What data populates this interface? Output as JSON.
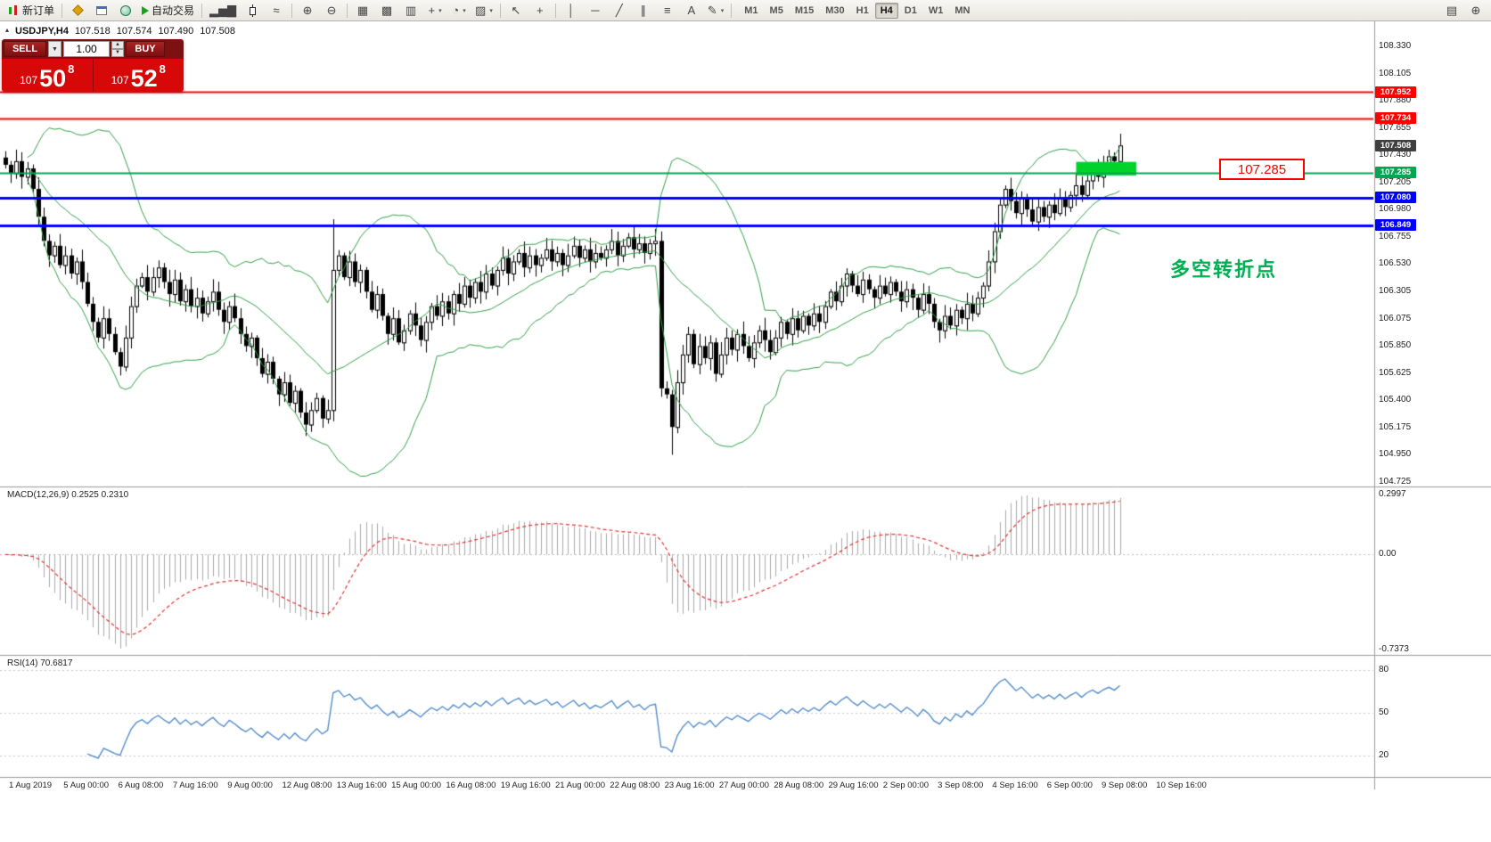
{
  "colors": {
    "accent_red": "#ff0000",
    "accent_green": "#00a651",
    "accent_blue": "#0000ff",
    "current_tag": "#3f3f3f",
    "bollinger": "#2f9e45",
    "candle_up": "#ffffff",
    "candle_down": "#000000",
    "macd_hist": "#a8a8a8",
    "macd_signal": "#e03333",
    "rsi_line": "#4a86c8",
    "panel_red": "#d60808",
    "highlight_green": "#00d22c"
  },
  "toolbar": {
    "items": [
      {
        "name": "new-order-button",
        "icon": "i-candles",
        "label": "新订单"
      },
      {
        "name": "separator"
      },
      {
        "name": "market-watch-icon",
        "icon": "i-diamond"
      },
      {
        "name": "data-window-icon",
        "icon": "i-window"
      },
      {
        "name": "navigator-icon",
        "icon": "i-globe"
      },
      {
        "name": "autotrading-button",
        "icon": "i-play",
        "label": "自动交易"
      },
      {
        "name": "separator"
      },
      {
        "name": "bar-chart-icon",
        "glyph": "▂▅▇"
      },
      {
        "name": "candlestick-chart-icon",
        "icon": "i-candle"
      },
      {
        "name": "line-chart-icon",
        "glyph": "≈"
      },
      {
        "name": "separator"
      },
      {
        "name": "zoom-in-icon",
        "glyph": "⊕"
      },
      {
        "name": "zoom-out-icon",
        "glyph": "⊖"
      },
      {
        "name": "separator"
      },
      {
        "name": "tile-windows-icon",
        "glyph": "▦"
      },
      {
        "name": "cascade-windows-icon",
        "glyph": "▩"
      },
      {
        "name": "arrange-icon",
        "glyph": "▥"
      },
      {
        "name": "indicators-button",
        "glyph": "+",
        "caret": true
      },
      {
        "name": "periods-button",
        "glyph": "◔",
        "caret": true
      },
      {
        "name": "templates-button",
        "glyph": "▨",
        "caret": true
      },
      {
        "name": "separator"
      },
      {
        "name": "cursor-icon",
        "glyph": "↖"
      },
      {
        "name": "crosshair-icon",
        "glyph": "+"
      },
      {
        "name": "separator"
      },
      {
        "name": "vertical-line-icon",
        "glyph": "│"
      },
      {
        "name": "horizontal-line-icon",
        "glyph": "─"
      },
      {
        "name": "trendline-icon",
        "glyph": "╱"
      },
      {
        "name": "channel-icon",
        "glyph": "∥"
      },
      {
        "name": "fibonacci-icon",
        "glyph": "≡"
      },
      {
        "name": "text-tool-icon",
        "glyph": "A"
      },
      {
        "name": "arrows-tool-icon",
        "glyph": "✎",
        "caret": true
      },
      {
        "name": "separator"
      }
    ],
    "timeframes": [
      "M1",
      "M5",
      "M15",
      "M30",
      "H1",
      "H4",
      "D1",
      "W1",
      "MN"
    ],
    "active_timeframe": "H4",
    "right_icons": [
      {
        "name": "print-icon",
        "glyph": "▤"
      },
      {
        "name": "zoom-window-icon",
        "glyph": "⊕"
      }
    ]
  },
  "symbol_bar": {
    "collapse_icon": "▴",
    "symbol": "USDJPY,H4",
    "open": "107.518",
    "high": "107.574",
    "low": "107.490",
    "close": "107.508"
  },
  "trade_panel": {
    "sell_label": "SELL",
    "buy_label": "BUY",
    "volume": "1.00",
    "sell_price_small": "107",
    "sell_price_big": "50",
    "sell_price_sup": "8",
    "buy_price_small": "107",
    "buy_price_big": "52",
    "buy_price_sup": "8"
  },
  "chart_data": {
    "type": "candlestick",
    "symbol": "USDJPY",
    "period": "H4",
    "closes": [
      107.35,
      107.28,
      107.38,
      107.25,
      107.32,
      107.15,
      106.92,
      106.72,
      106.6,
      106.68,
      106.52,
      106.6,
      106.45,
      106.55,
      106.38,
      106.2,
      106.05,
      105.92,
      106.08,
      105.95,
      105.8,
      105.68,
      105.92,
      106.18,
      106.35,
      106.42,
      106.3,
      106.42,
      106.5,
      106.38,
      106.28,
      106.4,
      106.22,
      106.32,
      106.18,
      106.25,
      106.12,
      106.22,
      106.3,
      106.15,
      106.05,
      106.18,
      106.08,
      105.95,
      105.85,
      105.92,
      105.75,
      105.62,
      105.72,
      105.58,
      105.45,
      105.55,
      105.38,
      105.48,
      105.3,
      105.2,
      105.32,
      105.42,
      105.25,
      105.32,
      106.48,
      106.6,
      106.42,
      106.55,
      106.38,
      106.48,
      106.3,
      106.15,
      106.28,
      106.1,
      105.95,
      106.08,
      105.88,
      105.98,
      106.12,
      106.02,
      105.9,
      106.05,
      106.18,
      106.1,
      106.22,
      106.12,
      106.28,
      106.2,
      106.35,
      106.25,
      106.38,
      106.3,
      106.45,
      106.35,
      106.48,
      106.58,
      106.45,
      106.55,
      106.62,
      106.5,
      106.6,
      106.52,
      106.58,
      106.65,
      106.55,
      106.62,
      106.52,
      106.6,
      106.68,
      106.58,
      106.65,
      106.55,
      106.62,
      106.58,
      106.65,
      106.72,
      106.6,
      106.68,
      106.75,
      106.65,
      106.7,
      106.62,
      106.7,
      106.72,
      105.5,
      105.45,
      105.18,
      105.55,
      105.78,
      105.95,
      105.7,
      105.85,
      105.75,
      105.88,
      105.62,
      105.78,
      105.92,
      105.82,
      105.95,
      105.85,
      105.75,
      105.88,
      105.98,
      105.9,
      105.8,
      105.92,
      106.05,
      105.95,
      106.08,
      105.98,
      106.1,
      106.02,
      106.12,
      106.05,
      106.18,
      106.3,
      106.22,
      106.35,
      106.45,
      106.35,
      106.28,
      106.4,
      106.32,
      106.25,
      106.35,
      106.28,
      106.38,
      106.3,
      106.22,
      106.32,
      106.25,
      106.15,
      106.28,
      106.2,
      106.05,
      105.98,
      106.1,
      106.02,
      106.15,
      106.08,
      106.2,
      106.12,
      106.25,
      106.35,
      106.55,
      106.8,
      107.02,
      107.15,
      107.05,
      106.95,
      107.08,
      106.98,
      106.88,
      107.0,
      106.92,
      107.02,
      106.95,
      107.08,
      107.0,
      107.1,
      107.18,
      107.1,
      107.22,
      107.3,
      107.25,
      107.35,
      107.42,
      107.38,
      107.51
    ],
    "high_overrides": {
      "60": 106.9
    },
    "low_overrides": {
      "122": 104.95
    },
    "bollinger": {
      "period": 20,
      "deviation": 2
    },
    "price_lines": [
      {
        "price": 107.952,
        "label": "107.952",
        "color": "#ff0000",
        "width": 2
      },
      {
        "price": 107.734,
        "label": "107.734",
        "color": "#ff0000",
        "width": 2
      },
      {
        "price": 107.285,
        "label": "107.285",
        "color": "#00a651",
        "width": 2
      },
      {
        "price": 107.08,
        "label": "107.080",
        "color": "#0000ff",
        "width": 3
      },
      {
        "price": 106.849,
        "label": "106.849",
        "color": "#0000ff",
        "width": 3
      }
    ],
    "current_price": {
      "value": 107.508,
      "label": "107.508"
    },
    "highlight_rect": {
      "index_start": 196,
      "index_end": 207,
      "price_top": 107.374,
      "price_bottom": 107.262
    },
    "annotation": {
      "text": "多空转折点"
    },
    "price_label_box": {
      "text": "107.285"
    },
    "indicators": {
      "macd": {
        "label": "MACD(12,26,9) 0.2525 0.2310",
        "fast": 12,
        "slow": 26,
        "signal": 9,
        "axis_labels": [
          "0.2997",
          "0.00",
          "-0.7373"
        ]
      },
      "rsi": {
        "label": "RSI(14) 70.6817",
        "period": 14,
        "axis_labels": [
          "80",
          "50",
          "20"
        ],
        "levels": [
          80,
          50,
          20
        ]
      }
    },
    "price_axis_labels": [
      "108.330",
      "108.105",
      "107.880",
      "107.655",
      "107.430",
      "107.205",
      "106.980",
      "106.755",
      "106.530",
      "106.305",
      "106.075",
      "105.850",
      "105.625",
      "105.400",
      "105.175",
      "104.950",
      "104.725"
    ],
    "time_axis_labels": [
      "1 Aug 2019",
      "5 Aug 00:00",
      "6 Aug 08:00",
      "7 Aug 16:00",
      "9 Aug 00:00",
      "12 Aug 08:00",
      "13 Aug 16:00",
      "15 Aug 00:00",
      "16 Aug 08:00",
      "19 Aug 16:00",
      "21 Aug 00:00",
      "22 Aug 08:00",
      "23 Aug 16:00",
      "27 Aug 00:00",
      "28 Aug 08:00",
      "29 Aug 16:00",
      "2 Sep 00:00",
      "3 Sep 08:00",
      "4 Sep 16:00",
      "6 Sep 00:00",
      "9 Sep 08:00",
      "10 Sep 16:00"
    ]
  }
}
